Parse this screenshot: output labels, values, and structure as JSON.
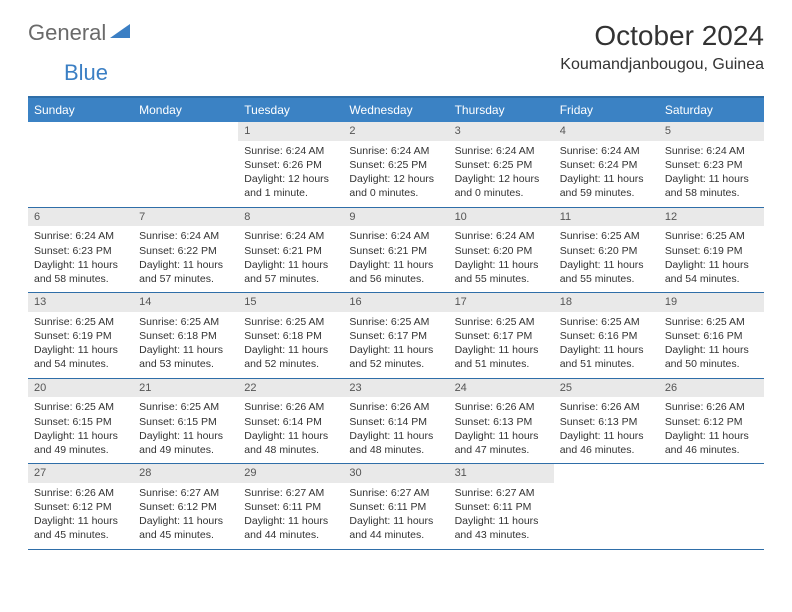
{
  "logo": {
    "word1": "General",
    "word2": "Blue",
    "color1": "#6a6a6a",
    "color2": "#3b7fc4"
  },
  "title": "October 2024",
  "location": "Koumandjanbougou, Guinea",
  "colors": {
    "header_bg": "#3b82c4",
    "header_text": "#ffffff",
    "border": "#2f6ea8",
    "daynum_bg": "#e9e9e9",
    "body_text": "#333333"
  },
  "dayNames": [
    "Sunday",
    "Monday",
    "Tuesday",
    "Wednesday",
    "Thursday",
    "Friday",
    "Saturday"
  ],
  "weeks": [
    [
      {
        "empty": true
      },
      {
        "empty": true
      },
      {
        "n": 1,
        "sunrise": "6:24 AM",
        "sunset": "6:26 PM",
        "daylight": "12 hours and 1 minute."
      },
      {
        "n": 2,
        "sunrise": "6:24 AM",
        "sunset": "6:25 PM",
        "daylight": "12 hours and 0 minutes."
      },
      {
        "n": 3,
        "sunrise": "6:24 AM",
        "sunset": "6:25 PM",
        "daylight": "12 hours and 0 minutes."
      },
      {
        "n": 4,
        "sunrise": "6:24 AM",
        "sunset": "6:24 PM",
        "daylight": "11 hours and 59 minutes."
      },
      {
        "n": 5,
        "sunrise": "6:24 AM",
        "sunset": "6:23 PM",
        "daylight": "11 hours and 58 minutes."
      }
    ],
    [
      {
        "n": 6,
        "sunrise": "6:24 AM",
        "sunset": "6:23 PM",
        "daylight": "11 hours and 58 minutes."
      },
      {
        "n": 7,
        "sunrise": "6:24 AM",
        "sunset": "6:22 PM",
        "daylight": "11 hours and 57 minutes."
      },
      {
        "n": 8,
        "sunrise": "6:24 AM",
        "sunset": "6:21 PM",
        "daylight": "11 hours and 57 minutes."
      },
      {
        "n": 9,
        "sunrise": "6:24 AM",
        "sunset": "6:21 PM",
        "daylight": "11 hours and 56 minutes."
      },
      {
        "n": 10,
        "sunrise": "6:24 AM",
        "sunset": "6:20 PM",
        "daylight": "11 hours and 55 minutes."
      },
      {
        "n": 11,
        "sunrise": "6:25 AM",
        "sunset": "6:20 PM",
        "daylight": "11 hours and 55 minutes."
      },
      {
        "n": 12,
        "sunrise": "6:25 AM",
        "sunset": "6:19 PM",
        "daylight": "11 hours and 54 minutes."
      }
    ],
    [
      {
        "n": 13,
        "sunrise": "6:25 AM",
        "sunset": "6:19 PM",
        "daylight": "11 hours and 54 minutes."
      },
      {
        "n": 14,
        "sunrise": "6:25 AM",
        "sunset": "6:18 PM",
        "daylight": "11 hours and 53 minutes."
      },
      {
        "n": 15,
        "sunrise": "6:25 AM",
        "sunset": "6:18 PM",
        "daylight": "11 hours and 52 minutes."
      },
      {
        "n": 16,
        "sunrise": "6:25 AM",
        "sunset": "6:17 PM",
        "daylight": "11 hours and 52 minutes."
      },
      {
        "n": 17,
        "sunrise": "6:25 AM",
        "sunset": "6:17 PM",
        "daylight": "11 hours and 51 minutes."
      },
      {
        "n": 18,
        "sunrise": "6:25 AM",
        "sunset": "6:16 PM",
        "daylight": "11 hours and 51 minutes."
      },
      {
        "n": 19,
        "sunrise": "6:25 AM",
        "sunset": "6:16 PM",
        "daylight": "11 hours and 50 minutes."
      }
    ],
    [
      {
        "n": 20,
        "sunrise": "6:25 AM",
        "sunset": "6:15 PM",
        "daylight": "11 hours and 49 minutes."
      },
      {
        "n": 21,
        "sunrise": "6:25 AM",
        "sunset": "6:15 PM",
        "daylight": "11 hours and 49 minutes."
      },
      {
        "n": 22,
        "sunrise": "6:26 AM",
        "sunset": "6:14 PM",
        "daylight": "11 hours and 48 minutes."
      },
      {
        "n": 23,
        "sunrise": "6:26 AM",
        "sunset": "6:14 PM",
        "daylight": "11 hours and 48 minutes."
      },
      {
        "n": 24,
        "sunrise": "6:26 AM",
        "sunset": "6:13 PM",
        "daylight": "11 hours and 47 minutes."
      },
      {
        "n": 25,
        "sunrise": "6:26 AM",
        "sunset": "6:13 PM",
        "daylight": "11 hours and 46 minutes."
      },
      {
        "n": 26,
        "sunrise": "6:26 AM",
        "sunset": "6:12 PM",
        "daylight": "11 hours and 46 minutes."
      }
    ],
    [
      {
        "n": 27,
        "sunrise": "6:26 AM",
        "sunset": "6:12 PM",
        "daylight": "11 hours and 45 minutes."
      },
      {
        "n": 28,
        "sunrise": "6:27 AM",
        "sunset": "6:12 PM",
        "daylight": "11 hours and 45 minutes."
      },
      {
        "n": 29,
        "sunrise": "6:27 AM",
        "sunset": "6:11 PM",
        "daylight": "11 hours and 44 minutes."
      },
      {
        "n": 30,
        "sunrise": "6:27 AM",
        "sunset": "6:11 PM",
        "daylight": "11 hours and 44 minutes."
      },
      {
        "n": 31,
        "sunrise": "6:27 AM",
        "sunset": "6:11 PM",
        "daylight": "11 hours and 43 minutes."
      },
      {
        "empty": true
      },
      {
        "empty": true
      }
    ]
  ],
  "labels": {
    "sunrise": "Sunrise:",
    "sunset": "Sunset:",
    "daylight": "Daylight:"
  }
}
